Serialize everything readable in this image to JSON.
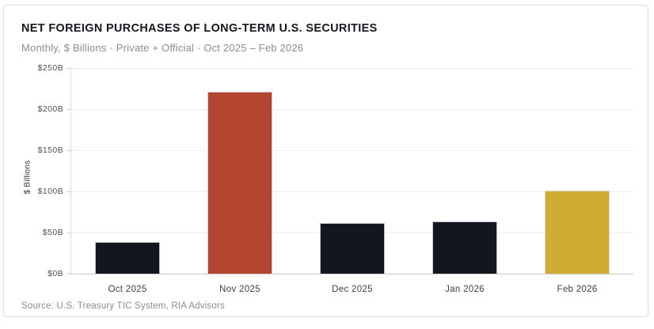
{
  "card": {
    "title": "NET FOREIGN PURCHASES OF LONG-TERM U.S. SECURITIES",
    "subtitle": "Monthly, $ Billions · Private + Official · Oct 2025 – Feb 2026",
    "source": "Source: U.S. Treasury TIC System, RIA Advisors"
  },
  "chart_data": {
    "type": "bar",
    "title": "NET FOREIGN PURCHASES OF LONG-TERM U.S. SECURITIES",
    "subtitle": "Monthly, $ Billions · Private + Official · Oct 2025 – Feb 2026",
    "categories": [
      "Oct 2025",
      "Nov 2025",
      "Dec 2025",
      "Jan 2026",
      "Feb 2026"
    ],
    "values": [
      38,
      221,
      62,
      63,
      101
    ],
    "bar_colors": [
      "#12161f",
      "#b44531",
      "#12161f",
      "#12161f",
      "#d1ac32"
    ],
    "xlabel": "",
    "ylabel": "$ Billions",
    "ylim": [
      0,
      250
    ],
    "y_ticks": [
      {
        "value": 0,
        "label": "$0B"
      },
      {
        "value": 50,
        "label": "$50B"
      },
      {
        "value": 100,
        "label": "$100B"
      },
      {
        "value": 150,
        "label": "$150B"
      },
      {
        "value": 200,
        "label": "$200B"
      },
      {
        "value": 250,
        "label": "$250B"
      }
    ],
    "grid": "horizontal",
    "legend": "none",
    "source": "Source: U.S. Treasury TIC System, RIA Advisors",
    "accent_colors": {
      "dark": "#12161f",
      "red": "#b44531",
      "gold": "#d1ac32"
    }
  }
}
